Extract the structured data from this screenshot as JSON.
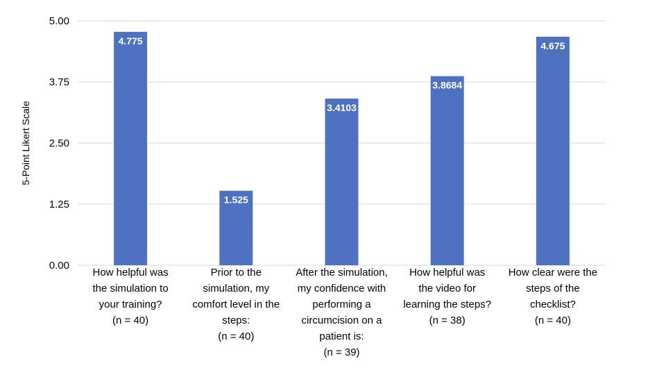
{
  "chart_data": {
    "type": "bar",
    "title": "",
    "xlabel": "",
    "ylabel": "5-Point Likert Scale",
    "ylim": [
      0,
      5
    ],
    "yticks": [
      "0.00",
      "1.25",
      "2.50",
      "3.75",
      "5.00"
    ],
    "grid": true,
    "bar_color": "#4f72c0",
    "categories": [
      [
        "How helpful was",
        "the simulation to",
        "your training?",
        "(n = 40)"
      ],
      [
        "Prior to the",
        "simulation, my",
        "comfort level in the",
        "steps:",
        "(n = 40)"
      ],
      [
        "After the simulation,",
        "my confidence with",
        "performing a",
        "circumcision on a",
        "patient is:",
        "(n = 39)"
      ],
      [
        "How helpful was",
        "the video for",
        "learning the steps?",
        "(n = 38)"
      ],
      [
        "How clear were the",
        "steps of the",
        "checklist?",
        "(n = 40)"
      ]
    ],
    "values": [
      4.775,
      1.525,
      3.4103,
      3.8684,
      4.675
    ],
    "data_labels": [
      "4.775",
      "1.525",
      "3.4103",
      "3.8684",
      "4.675"
    ]
  }
}
